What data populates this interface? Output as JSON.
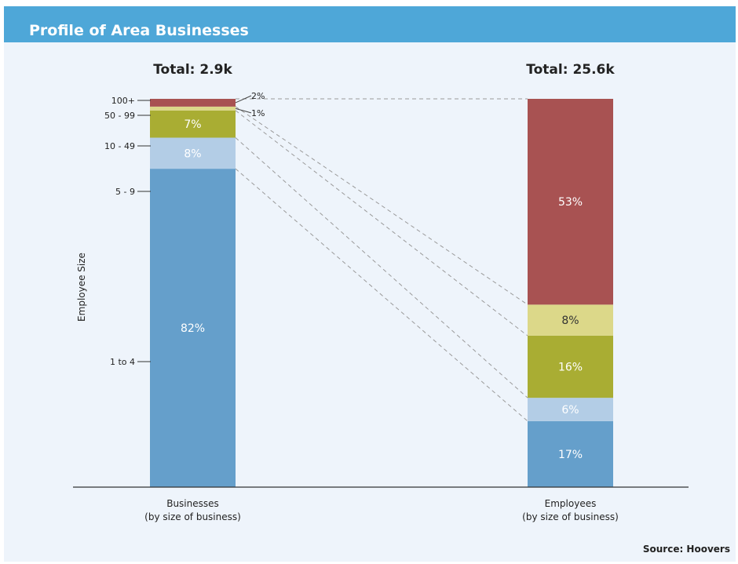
{
  "header": {
    "title": "Profile of Area Businesses"
  },
  "source": "Source: Hoovers",
  "colors": {
    "header": "#4ea7d8",
    "panel": "#eef4fb",
    "seg_1to4": "#659fcb",
    "seg_5to9": "#b3cde6",
    "seg_10to49": "#a9ad33",
    "seg_50to99": "#dcd889",
    "seg_100plus": "#a85252",
    "connector": "#9a9a9a"
  },
  "chart_data": {
    "type": "bar",
    "stacked": true,
    "ylabel": "Employee Size",
    "categories": [
      "Businesses\n(by size of business)",
      "Employees\n(by size of business)"
    ],
    "totals": [
      "Total: 2.9k",
      "Total: 25.6k"
    ],
    "size_labels": [
      "1 to 4",
      "5 - 9",
      "10 - 49",
      "50 - 99",
      "100+"
    ],
    "series": [
      {
        "name": "1 to 4",
        "values": [
          82,
          17
        ],
        "labels": [
          "82%",
          "17%"
        ]
      },
      {
        "name": "5 - 9",
        "values": [
          8,
          6
        ],
        "labels": [
          "8%",
          "6%"
        ]
      },
      {
        "name": "10 - 49",
        "values": [
          7,
          16
        ],
        "labels": [
          "7%",
          "16%"
        ]
      },
      {
        "name": "50 - 99",
        "values": [
          1,
          8
        ],
        "labels": [
          "1%",
          "8%"
        ]
      },
      {
        "name": "100+",
        "values": [
          2,
          53
        ],
        "labels": [
          "2%",
          "53%"
        ]
      }
    ],
    "ylim": [
      0,
      100
    ],
    "connectors": "dashed",
    "legend": "none"
  }
}
